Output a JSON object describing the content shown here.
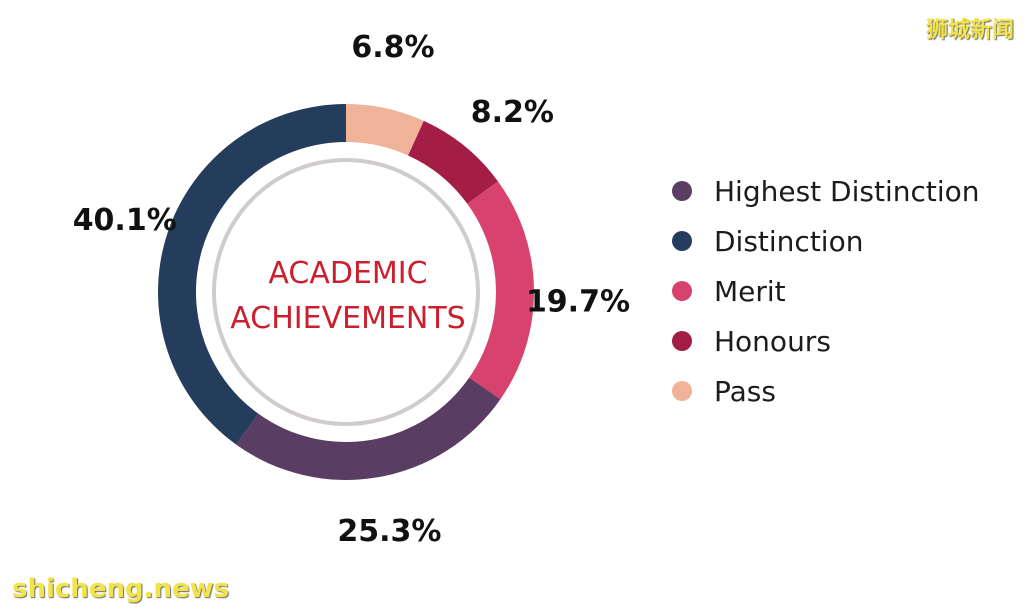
{
  "chart_data": {
    "type": "pie",
    "variant": "donut",
    "title": "ACADEMIC ACHIEVEMENTS",
    "title_lines": [
      "ACADEMIC",
      "ACHIEVEMENTS"
    ],
    "start_angle_deg": 0,
    "direction": "clockwise",
    "legend_position": "right",
    "slices": [
      {
        "name": "Pass",
        "value": 6.8,
        "label": "6.8%",
        "color": "#f0b399"
      },
      {
        "name": "Honours",
        "value": 8.2,
        "label": "8.2%",
        "color": "#a31d45"
      },
      {
        "name": "Merit",
        "value": 19.7,
        "label": "19.7%",
        "color": "#d7436e"
      },
      {
        "name": "Highest Distinction",
        "value": 25.3,
        "label": "25.3%",
        "color": "#5a3d62"
      },
      {
        "name": "Distinction",
        "value": 40.1,
        "label": "40.1%",
        "color": "#243d5c"
      }
    ],
    "legend": [
      {
        "name": "Highest Distinction",
        "color": "#5a3d62"
      },
      {
        "name": "Distinction",
        "color": "#243d5c"
      },
      {
        "name": "Merit",
        "color": "#d7436e"
      },
      {
        "name": "Honours",
        "color": "#a31d45"
      },
      {
        "name": "Pass",
        "color": "#f0b399"
      }
    ]
  },
  "watermarks": {
    "top_right": "狮城新闻",
    "bottom_left": "shicheng.news"
  },
  "colors": {
    "title": "#cc1f2d",
    "inner_circle": "#d0cccc",
    "watermark": "#f2e34a"
  }
}
